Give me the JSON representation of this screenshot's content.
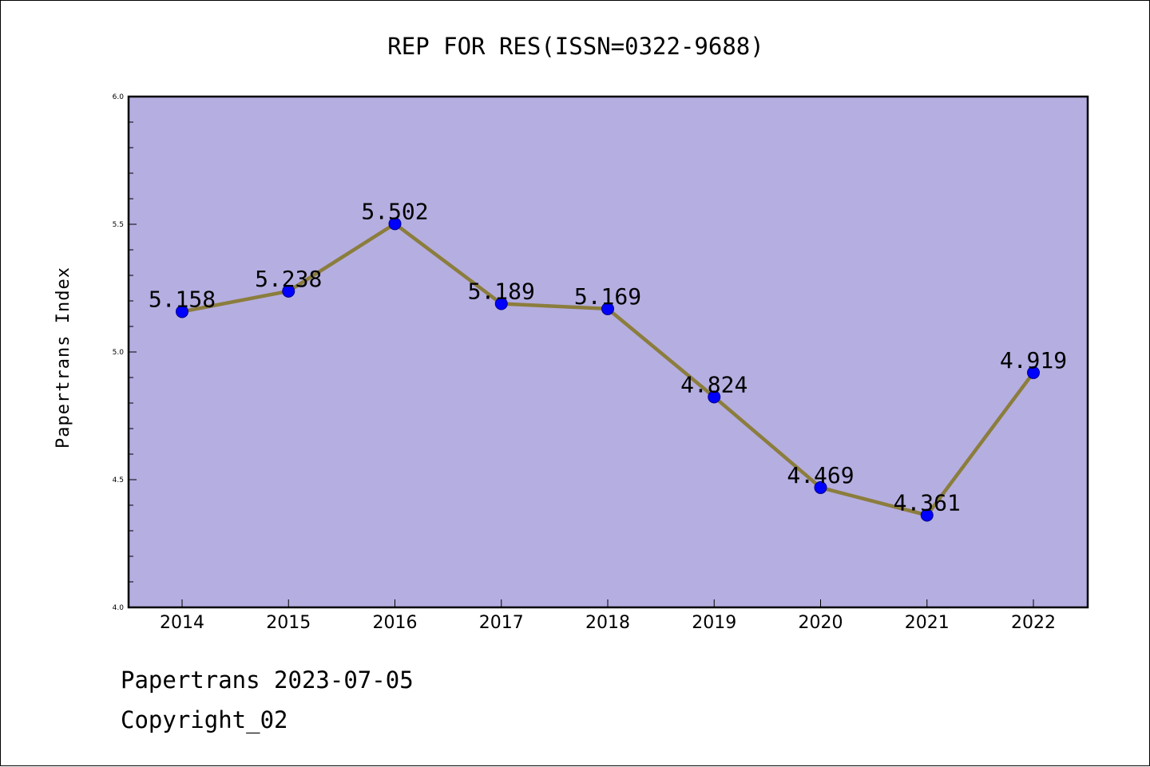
{
  "chart_data": {
    "type": "line",
    "title": "REP FOR RES(ISSN=0322-9688)",
    "ylabel": "Papertrans Index",
    "xlabel": "",
    "categories": [
      "2014",
      "2015",
      "2016",
      "2017",
      "2018",
      "2019",
      "2020",
      "2021",
      "2022"
    ],
    "series": [
      {
        "values": [
          5.158,
          5.238,
          5.502,
          5.189,
          5.169,
          4.824,
          4.469,
          4.361,
          4.919
        ],
        "labels": [
          "5.158",
          "5.238",
          "5.502",
          "5.189",
          "5.169",
          "4.824",
          "4.469",
          "4.361",
          "4.919"
        ]
      }
    ],
    "ylim": [
      4.0,
      6.0
    ],
    "yticks": [
      "4.0",
      "4.5",
      "5.0",
      "5.5",
      "6.0"
    ],
    "grid": false,
    "colors": {
      "plot_background": "#b5aee1",
      "line": "#8b7d3c",
      "marker": "#0000ff"
    }
  },
  "footer": {
    "date_text": "Papertrans 2023-07-05",
    "copyright_text": "Copyright_02"
  }
}
